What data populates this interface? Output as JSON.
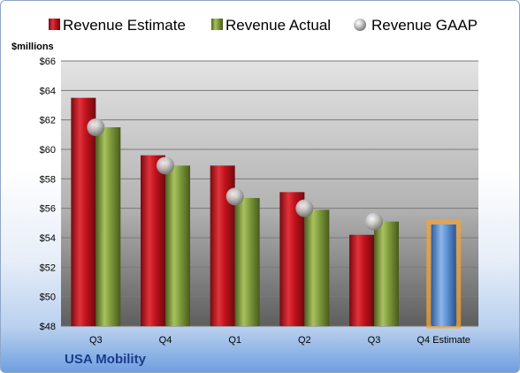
{
  "chart_data": {
    "type": "bar",
    "ylabel": "$millions",
    "ylim": [
      48,
      66
    ],
    "yticks": [
      48,
      50,
      52,
      54,
      56,
      58,
      60,
      62,
      64,
      66
    ],
    "ytick_labels": [
      "$48",
      "$50",
      "$52",
      "$54",
      "$56",
      "$58",
      "$60",
      "$62",
      "$64",
      "$66"
    ],
    "categories": [
      "Q3",
      "Q4",
      "Q1",
      "Q2",
      "Q3",
      "Q4 Estimate"
    ],
    "series": [
      {
        "name": "Revenue Estimate",
        "kind": "bar",
        "color": "#c0121c",
        "values": [
          63.5,
          59.6,
          58.9,
          57.1,
          54.2,
          null
        ]
      },
      {
        "name": "Revenue Actual",
        "kind": "bar",
        "color": "#7f9a3c",
        "values": [
          61.5,
          58.9,
          56.7,
          55.9,
          55.1,
          null
        ]
      },
      {
        "name": "Revenue GAAP",
        "kind": "marker",
        "color": "#b8b8b8",
        "values": [
          61.5,
          58.9,
          56.8,
          56.0,
          55.1,
          null
        ]
      }
    ],
    "estimate_bar": {
      "category": "Q4 Estimate",
      "value": 54.9,
      "color": "#5b8fd4",
      "highlight": "#f2a33a"
    },
    "legend_position": "top",
    "grid": true
  },
  "footer": {
    "company": "USA Mobility"
  }
}
